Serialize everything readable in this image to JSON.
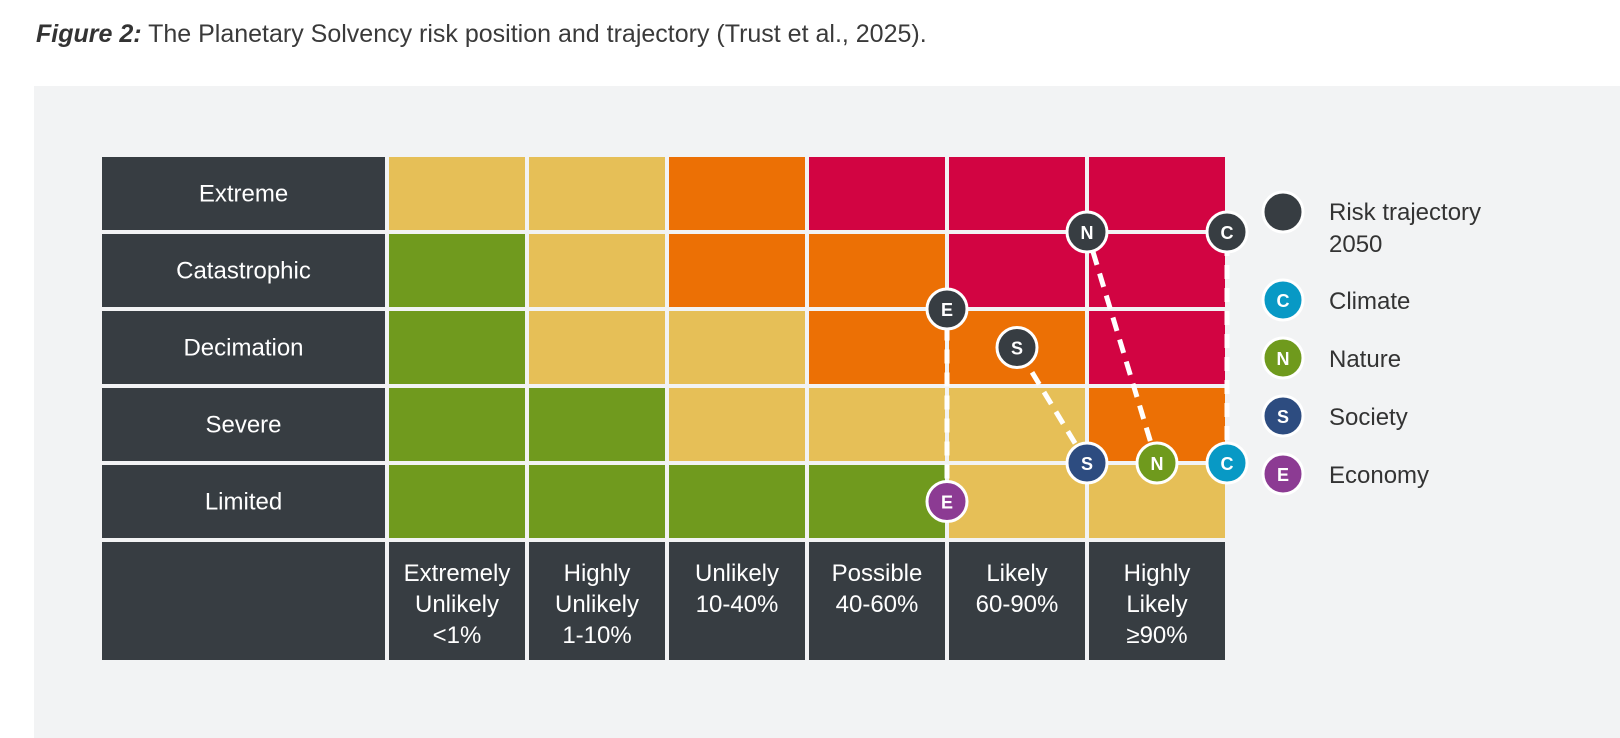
{
  "caption": {
    "label": "Figure 2:",
    "text": " The Planetary Solvency risk position and trajectory (Trust et al., 2025)."
  },
  "chart_data": {
    "type": "heatmap",
    "title": "",
    "rows": [
      "Extreme",
      "Catastrophic",
      "Decimation",
      "Severe",
      "Limited"
    ],
    "columns": [
      [
        "Extremely",
        "Unlikely",
        "<1%"
      ],
      [
        "Highly",
        "Unlikely",
        "1-10%"
      ],
      [
        "Unlikely",
        "10-40%"
      ],
      [
        "Possible",
        "40-60%"
      ],
      [
        "Likely",
        "60-90%"
      ],
      [
        "Highly",
        "Likely",
        "≥90%"
      ]
    ],
    "cells": [
      [
        "amber",
        "amber",
        "orange",
        "red",
        "red",
        "red"
      ],
      [
        "green",
        "amber",
        "orange",
        "orange",
        "red",
        "red"
      ],
      [
        "green",
        "amber",
        "amber",
        "orange",
        "orange",
        "red"
      ],
      [
        "green",
        "green",
        "amber",
        "amber",
        "amber",
        "orange"
      ],
      [
        "green",
        "green",
        "green",
        "green",
        "amber",
        "amber"
      ]
    ],
    "cell_colors": {
      "amber": "#e6bf57",
      "orange": "#ec7005",
      "red": "#d20442",
      "green": "#709a1e"
    },
    "header_color": "#373d42",
    "categories": [
      {
        "letter": "C",
        "name": "Climate",
        "color": "#0899c5",
        "current": {
          "col": 6.0,
          "row": 4.0
        },
        "trajectory_2050": {
          "col": 6.0,
          "row": 1.0
        }
      },
      {
        "letter": "N",
        "name": "Nature",
        "color": "#6f9a1d",
        "current": {
          "col": 5.5,
          "row": 4.0
        },
        "trajectory_2050": {
          "col": 5.0,
          "row": 1.0
        }
      },
      {
        "letter": "S",
        "name": "Society",
        "color": "#2d4c80",
        "current": {
          "col": 5.0,
          "row": 4.0
        },
        "trajectory_2050": {
          "col": 4.5,
          "row": 2.5
        }
      },
      {
        "letter": "E",
        "name": "Economy",
        "color": "#8c3b93",
        "current": {
          "col": 4.0,
          "row": 4.5
        },
        "trajectory_2050": {
          "col": 4.0,
          "row": 2.0
        }
      }
    ],
    "legend": {
      "position": "right",
      "trajectory_label": [
        "Risk trajectory",
        "2050"
      ],
      "trajectory_color": "#373d42"
    }
  }
}
